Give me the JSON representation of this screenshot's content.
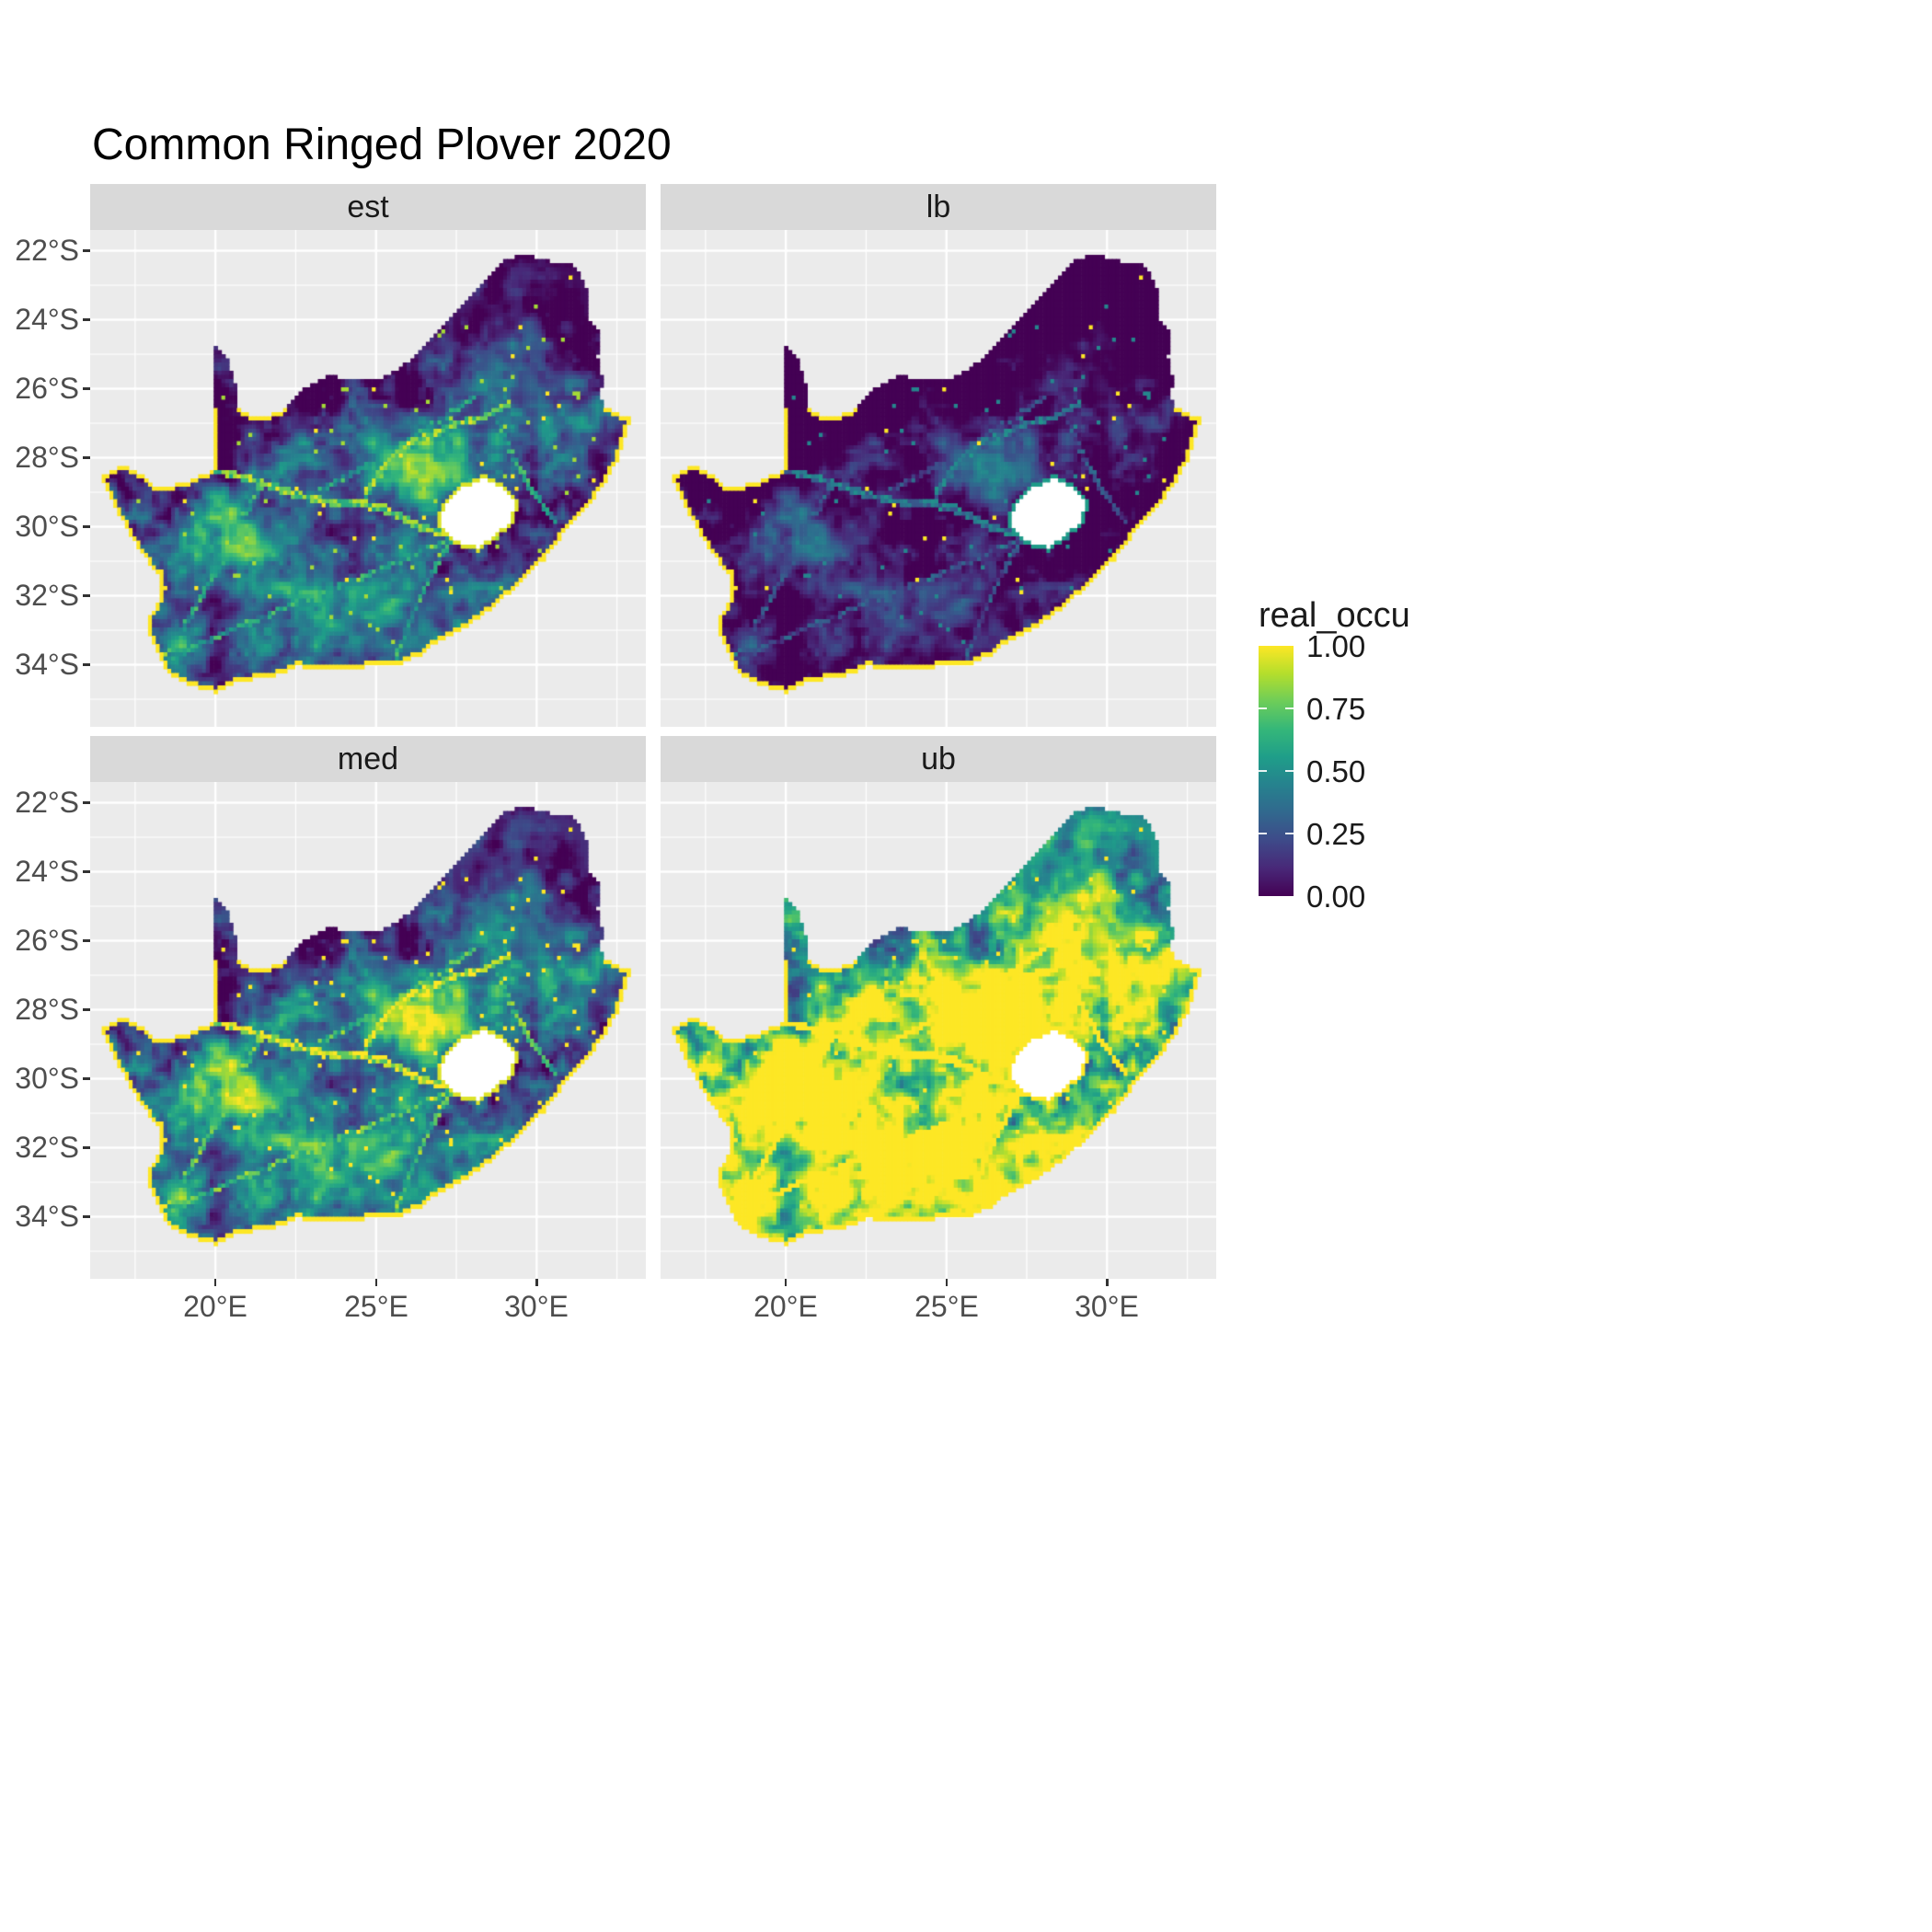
{
  "title": "Common Ringed Plover 2020",
  "facets": [
    {
      "id": "est",
      "label": "est"
    },
    {
      "id": "lb",
      "label": "lb"
    },
    {
      "id": "med",
      "label": "med"
    },
    {
      "id": "ub",
      "label": "ub"
    }
  ],
  "axes": {
    "y_ticks": [
      "22°S",
      "24°S",
      "26°S",
      "28°S",
      "30°S",
      "32°S",
      "34°S"
    ],
    "x_ticks": [
      "20°E",
      "25°E",
      "30°E"
    ]
  },
  "legend": {
    "title": "real_occu",
    "ticks": [
      "1.00",
      "0.75",
      "0.50",
      "0.25",
      "0.00"
    ]
  },
  "colors": {
    "panel_bg": "#EBEBEB",
    "strip_bg": "#D9D9D9",
    "grid": "#FFFFFF",
    "hole_fill": "#FFFFFF",
    "viridis": [
      "#440154",
      "#482878",
      "#3E4A89",
      "#31688E",
      "#26828E",
      "#1F9E89",
      "#35B779",
      "#6DCD59",
      "#B4DE2C",
      "#FDE725"
    ]
  },
  "chart_data": {
    "type": "heatmap",
    "subtype": "faceted_raster_map",
    "title": "Common Ringed Plover 2020",
    "region": "South Africa",
    "value_variable": "real_occu",
    "value_range": [
      0,
      1
    ],
    "legend_breaks": [
      1.0,
      0.75,
      0.5,
      0.25,
      0.0
    ],
    "palette": "viridis",
    "x_axis": {
      "ticks": [
        "20°E",
        "25°E",
        "30°E"
      ],
      "approx_range_deg": [
        16.1,
        33.4
      ]
    },
    "y_axis": {
      "ticks": [
        "22°S",
        "24°S",
        "26°S",
        "28°S",
        "30°S",
        "32°S",
        "34°S"
      ],
      "approx_range_deg": [
        -35.8,
        -21.4
      ]
    },
    "facets": [
      {
        "label": "est",
        "summary": "estimated occupancy: mostly low (dark purple) with green-yellow hotspots in central and western interior, green river/route network, solid yellow coastal rim"
      },
      {
        "label": "lb",
        "summary": "lower bound: darkest facet, sparse faint green hotspots and dots, yellow coastal rim"
      },
      {
        "label": "med",
        "summary": "median: similar to est, bright hotspots central interior, yellow coastal rim and yellow rim around Lesotho hole"
      },
      {
        "label": "ub",
        "summary": "upper bound: brightest facet, widespread yellow-green occupancy across southern and western interior, darker in far north-east"
      }
    ],
    "notes": "Lesotho shown as blank (white) hole; coastline cells at occupancy ≈ 1.00 (yellow rim); grey panel background with white graticule lines"
  }
}
